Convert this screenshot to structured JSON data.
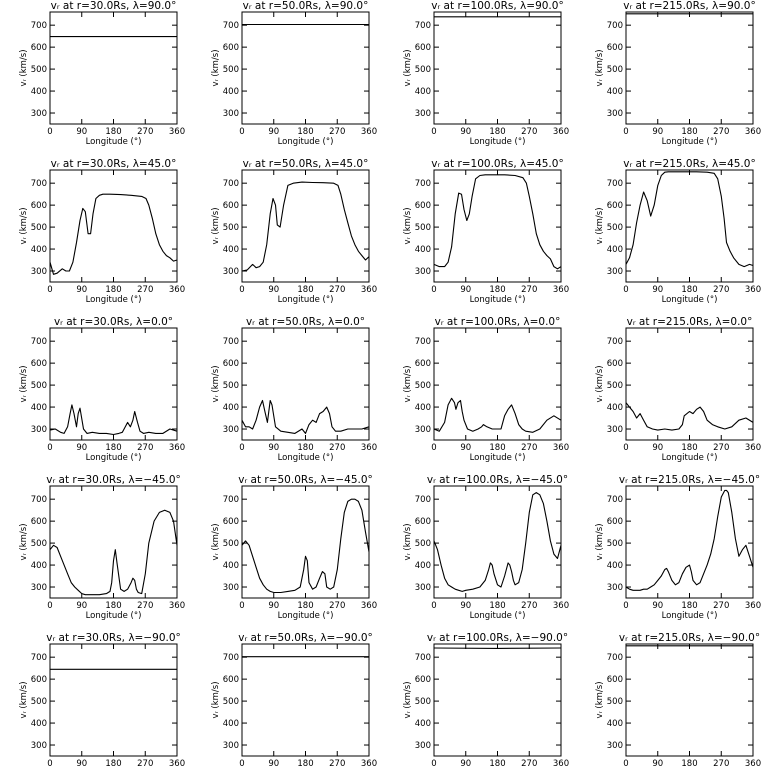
{
  "chart_data": {
    "type": "line",
    "xlabel": "Longitude (°)",
    "ylabel": "vᵣ (km/s)",
    "xlim": [
      0,
      360
    ],
    "ylim": [
      250,
      760
    ],
    "xticks": [
      0,
      90,
      180,
      270,
      360
    ],
    "yticks": [
      300,
      400,
      500,
      600,
      700
    ],
    "panels": [
      {
        "title": "vᵣ at r=30.0Rs, λ=90.0°",
        "x": [
          0,
          360
        ],
        "y": [
          648,
          648
        ]
      },
      {
        "title": "vᵣ at r=50.0Rs, λ=90.0°",
        "x": [
          0,
          360
        ],
        "y": [
          703,
          703
        ]
      },
      {
        "title": "vᵣ at r=100.0Rs, λ=90.0°",
        "x": [
          0,
          360
        ],
        "y": [
          738,
          738
        ]
      },
      {
        "title": "vᵣ at r=215.0Rs, λ=90.0°",
        "x": [
          0,
          360
        ],
        "y": [
          752,
          752
        ]
      },
      {
        "title": "vᵣ at r=30.0Rs, λ=45.0°",
        "x": [
          0,
          10,
          20,
          35,
          45,
          55,
          65,
          75,
          85,
          93,
          100,
          108,
          115,
          122,
          130,
          140,
          150,
          170,
          200,
          230,
          260,
          272,
          280,
          290,
          300,
          310,
          320,
          330,
          340,
          350,
          360
        ],
        "y": [
          340,
          285,
          290,
          310,
          300,
          300,
          340,
          430,
          530,
          585,
          570,
          470,
          470,
          560,
          630,
          645,
          650,
          650,
          648,
          645,
          640,
          630,
          600,
          540,
          470,
          420,
          390,
          370,
          360,
          345,
          350
        ]
      },
      {
        "title": "vᵣ at r=50.0Rs, λ=45.0°",
        "x": [
          0,
          15,
          30,
          40,
          50,
          60,
          70,
          80,
          88,
          95,
          100,
          108,
          118,
          130,
          145,
          170,
          200,
          230,
          260,
          272,
          280,
          290,
          300,
          310,
          320,
          330,
          340,
          350,
          360
        ],
        "y": [
          300,
          305,
          330,
          315,
          320,
          340,
          420,
          560,
          630,
          600,
          510,
          500,
          600,
          690,
          700,
          705,
          703,
          702,
          700,
          690,
          650,
          580,
          520,
          460,
          420,
          390,
          370,
          350,
          365
        ]
      },
      {
        "title": "vᵣ at r=100.0Rs, λ=45.0°",
        "x": [
          0,
          15,
          30,
          40,
          50,
          60,
          70,
          78,
          85,
          93,
          100,
          108,
          118,
          130,
          145,
          170,
          200,
          230,
          252,
          262,
          270,
          280,
          290,
          300,
          310,
          320,
          330,
          340,
          350,
          360
        ],
        "y": [
          330,
          320,
          320,
          340,
          410,
          560,
          655,
          650,
          580,
          530,
          560,
          640,
          720,
          735,
          738,
          738,
          738,
          735,
          725,
          700,
          640,
          560,
          470,
          420,
          390,
          370,
          355,
          320,
          310,
          320
        ]
      },
      {
        "title": "vᵣ at r=215.0Rs, λ=45.0°",
        "x": [
          0,
          10,
          20,
          30,
          40,
          50,
          60,
          70,
          80,
          90,
          100,
          110,
          120,
          140,
          170,
          200,
          230,
          250,
          260,
          270,
          278,
          285,
          295,
          305,
          320,
          335,
          350,
          360
        ],
        "y": [
          330,
          360,
          420,
          520,
          600,
          660,
          620,
          550,
          600,
          690,
          735,
          750,
          752,
          752,
          752,
          752,
          750,
          745,
          720,
          640,
          540,
          430,
          390,
          360,
          330,
          320,
          330,
          325
        ]
      },
      {
        "title": "vᵣ at r=30.0Rs, λ=0.0°",
        "x": [
          0,
          15,
          30,
          40,
          50,
          57,
          62,
          68,
          75,
          80,
          85,
          95,
          105,
          120,
          140,
          160,
          180,
          195,
          205,
          210,
          220,
          228,
          235,
          240,
          248,
          255,
          265,
          280,
          300,
          320,
          340,
          360
        ],
        "y": [
          295,
          300,
          285,
          280,
          310,
          370,
          410,
          370,
          310,
          370,
          395,
          300,
          280,
          285,
          280,
          280,
          275,
          280,
          285,
          300,
          330,
          310,
          340,
          380,
          330,
          290,
          280,
          285,
          280,
          280,
          300,
          290
        ]
      },
      {
        "title": "vᵣ at r=50.0Rs, λ=0.0°",
        "x": [
          0,
          10,
          20,
          30,
          40,
          50,
          58,
          65,
          72,
          80,
          85,
          95,
          110,
          130,
          150,
          170,
          180,
          190,
          200,
          210,
          220,
          230,
          240,
          248,
          255,
          265,
          280,
          300,
          320,
          340,
          360
        ],
        "y": [
          340,
          310,
          310,
          300,
          340,
          400,
          430,
          380,
          330,
          430,
          410,
          310,
          290,
          285,
          280,
          300,
          280,
          320,
          340,
          330,
          370,
          380,
          400,
          370,
          310,
          290,
          290,
          300,
          300,
          300,
          310
        ]
      },
      {
        "title": "vᵣ at r=100.0Rs, λ=0.0°",
        "x": [
          0,
          15,
          30,
          40,
          50,
          58,
          62,
          68,
          75,
          80,
          85,
          95,
          110,
          125,
          135,
          140,
          150,
          165,
          180,
          190,
          200,
          210,
          220,
          230,
          240,
          250,
          260,
          280,
          300,
          320,
          340,
          360
        ],
        "y": [
          300,
          290,
          330,
          410,
          440,
          420,
          390,
          420,
          430,
          380,
          340,
          300,
          290,
          300,
          310,
          320,
          310,
          300,
          300,
          300,
          360,
          390,
          410,
          370,
          320,
          300,
          290,
          285,
          300,
          340,
          360,
          340
        ]
      },
      {
        "title": "vᵣ at r=215.0Rs, λ=0.0°",
        "x": [
          0,
          10,
          20,
          30,
          40,
          50,
          60,
          75,
          90,
          110,
          130,
          150,
          160,
          165,
          180,
          190,
          200,
          210,
          220,
          230,
          245,
          260,
          280,
          300,
          320,
          340,
          360
        ],
        "y": [
          420,
          400,
          380,
          350,
          370,
          340,
          310,
          300,
          295,
          300,
          295,
          300,
          320,
          360,
          380,
          370,
          390,
          400,
          380,
          340,
          320,
          310,
          300,
          310,
          340,
          350,
          330
        ]
      },
      {
        "title": "vᵣ at r=30.0Rs, λ=−45.0°",
        "x": [
          0,
          10,
          20,
          30,
          40,
          50,
          60,
          70,
          80,
          90,
          100,
          120,
          140,
          160,
          170,
          175,
          180,
          185,
          190,
          200,
          210,
          220,
          230,
          235,
          240,
          245,
          250,
          260,
          270,
          280,
          295,
          310,
          325,
          340,
          350,
          360
        ],
        "y": [
          470,
          490,
          480,
          440,
          400,
          360,
          320,
          300,
          285,
          270,
          265,
          265,
          265,
          270,
          280,
          320,
          420,
          470,
          410,
          290,
          280,
          290,
          320,
          340,
          330,
          290,
          275,
          270,
          360,
          500,
          600,
          640,
          650,
          640,
          600,
          490
        ]
      },
      {
        "title": "vᵣ at r=50.0Rs, λ=−45.0°",
        "x": [
          0,
          10,
          20,
          30,
          40,
          50,
          60,
          70,
          80,
          90,
          110,
          130,
          150,
          165,
          175,
          180,
          185,
          190,
          200,
          210,
          220,
          228,
          235,
          240,
          250,
          260,
          270,
          280,
          290,
          300,
          310,
          320,
          330,
          340,
          350,
          360
        ],
        "y": [
          490,
          510,
          490,
          440,
          390,
          340,
          310,
          290,
          280,
          275,
          275,
          280,
          285,
          300,
          380,
          440,
          420,
          320,
          290,
          300,
          340,
          370,
          360,
          300,
          290,
          300,
          380,
          520,
          640,
          690,
          700,
          700,
          690,
          650,
          550,
          460
        ]
      },
      {
        "title": "vᵣ at r=100.0Rs, λ=−45.0°",
        "x": [
          0,
          10,
          20,
          30,
          40,
          50,
          60,
          70,
          80,
          90,
          110,
          130,
          145,
          155,
          160,
          165,
          170,
          180,
          190,
          200,
          210,
          215,
          220,
          225,
          230,
          240,
          250,
          260,
          270,
          280,
          290,
          300,
          310,
          320,
          330,
          340,
          350,
          360
        ],
        "y": [
          510,
          470,
          400,
          340,
          310,
          300,
          290,
          285,
          280,
          285,
          290,
          300,
          330,
          380,
          410,
          400,
          360,
          310,
          300,
          350,
          410,
          400,
          370,
          330,
          310,
          320,
          380,
          500,
          640,
          720,
          730,
          720,
          680,
          600,
          510,
          450,
          430,
          490
        ]
      },
      {
        "title": "vᵣ at r=215.0Rs, λ=−45.0°",
        "x": [
          0,
          10,
          20,
          30,
          40,
          50,
          60,
          70,
          80,
          90,
          100,
          110,
          115,
          120,
          130,
          140,
          150,
          160,
          170,
          180,
          185,
          190,
          200,
          210,
          220,
          230,
          240,
          250,
          260,
          270,
          280,
          285,
          290,
          300,
          310,
          320,
          330,
          340,
          350,
          360
        ],
        "y": [
          300,
          290,
          285,
          285,
          285,
          290,
          290,
          300,
          310,
          330,
          350,
          380,
          385,
          370,
          330,
          310,
          320,
          360,
          390,
          400,
          370,
          330,
          310,
          320,
          360,
          400,
          450,
          520,
          620,
          710,
          740,
          740,
          730,
          640,
          520,
          440,
          470,
          490,
          440,
          390
        ]
      },
      {
        "title": "vᵣ at r=30.0Rs, λ=−90.0°",
        "x": [
          0,
          360
        ],
        "y": [
          645,
          645
        ]
      },
      {
        "title": "vᵣ at r=50.0Rs, λ=−90.0°",
        "x": [
          0,
          360
        ],
        "y": [
          702,
          702
        ]
      },
      {
        "title": "vᵣ at r=100.0Rs, λ=−90.0°",
        "x": [
          0,
          180,
          360
        ],
        "y": [
          742,
          740,
          742
        ]
      },
      {
        "title": "vᵣ at r=215.0Rs, λ=−90.0°",
        "x": [
          0,
          360
        ],
        "y": [
          752,
          752
        ]
      }
    ]
  }
}
